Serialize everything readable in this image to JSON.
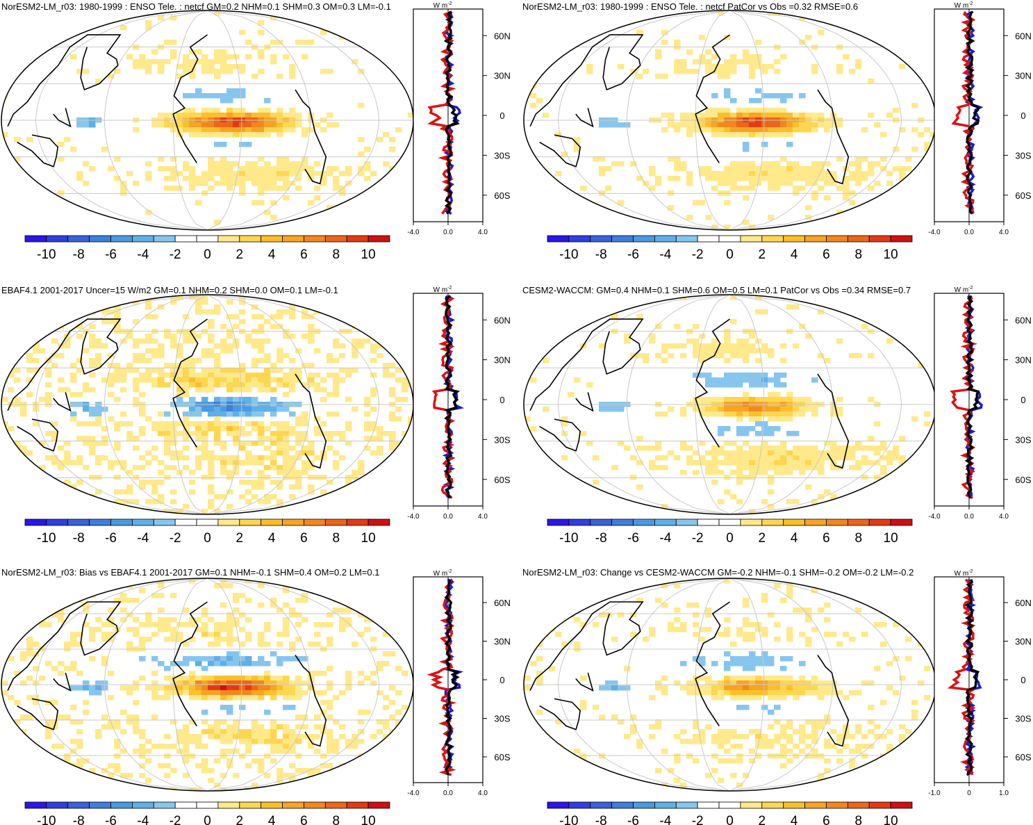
{
  "colors": {
    "levels": [
      "#2b16e8",
      "#2f3fe0",
      "#3a62d8",
      "#3f7fda",
      "#4b9ae0",
      "#5fb0e8",
      "#86c6ee",
      "#ffffff",
      "#ffffff",
      "#ffe98a",
      "#ffd650",
      "#fbbf2c",
      "#f7a324",
      "#f2871e",
      "#ec661a",
      "#e33a14",
      "#d01010"
    ],
    "model": "#1a1ad8",
    "obs": "#e01010",
    "line": "#000000",
    "land": "#ffffff",
    "grid": "#c8c8c8"
  },
  "colorbar": {
    "labels": [
      "-10",
      "-8",
      "-6",
      "-4",
      "-2",
      "0",
      "2",
      "4",
      "6",
      "8",
      "10"
    ]
  },
  "profile": {
    "unit": "W m",
    "unit_exp": "-2",
    "lat_labels": [
      "60N",
      "30N",
      "0",
      "30S",
      "60S"
    ]
  },
  "panels": [
    {
      "title": "NorESM2-LM_r03: 1980-1999 : ENSO Tele. : netcf GM=0.2 NHM=0.1 SHM=0.3 OM=0.3 LM=-0.1",
      "x_ticks": [
        "-4.0",
        "0.0",
        "4.0"
      ],
      "pattern": {
        "pac": 0.9,
        "band": -0.45,
        "sub": 0.4,
        "noise": 0.25
      }
    },
    {
      "title": "NorESM2-LM_r03: 1980-1999 : ENSO Tele. : netcf PatCor vs Obs =0.32 RMSE=0.6",
      "x_ticks": [
        "-4.0",
        "0.0",
        "4.0"
      ],
      "pattern": {
        "pac": 0.9,
        "band": -0.45,
        "sub": 0.4,
        "noise": 0.25
      }
    },
    {
      "title": "EBAF4.1 2001-2017 Uncer=15 W/m2 GM=0.1 NHM=0.2 SHM=0.0 OM=0.1 LM=-0.1",
      "x_ticks": [
        "-4.0",
        "0.0",
        "4.0"
      ],
      "pattern": {
        "pac": -0.6,
        "band": 0.55,
        "sub": 0.25,
        "noise": 0.5
      }
    },
    {
      "title": "CESM2-WACCM: GM=0.4 NHM=0.1 SHM=0.6 OM=0.5 LM=0.1 PatCor vs Obs =0.34 RMSE=0.7",
      "x_ticks": [
        "-4.0",
        "0.0",
        "4.0"
      ],
      "pattern": {
        "pac": 0.6,
        "band": -0.6,
        "sub": 0.45,
        "noise": 0.25
      }
    },
    {
      "title": "NorESM2-LM_r03: Bias vs EBAF4.1 2001-2017 GM=0.1 NHM=-0.1 SHM=0.4 OM=0.2 LM=0.1",
      "x_ticks": [
        "-4.0",
        "0.0",
        "4.0"
      ],
      "pattern": {
        "pac": 0.95,
        "band": -0.55,
        "sub": 0.45,
        "noise": 0.4
      }
    },
    {
      "title": "NorESM2-LM_r03: Change vs CESM2-WACCM GM=-0.2 NHM=-0.1 SHM=-0.2 OM=-0.2 LM=-0.2",
      "x_ticks": [
        "-1.0",
        "0",
        "1.0"
      ],
      "pattern": {
        "pac": 0.55,
        "band": -0.5,
        "sub": 0.3,
        "noise": 0.3
      }
    }
  ]
}
